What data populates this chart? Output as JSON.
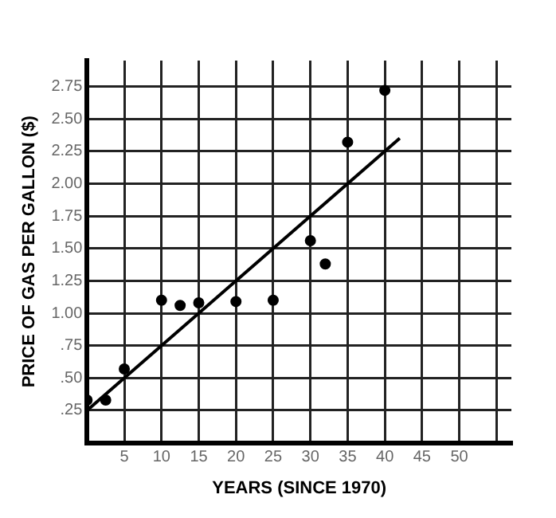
{
  "chart_data": {
    "type": "scatter",
    "xlabel": "YEARS (SINCE 1970)",
    "ylabel": "PRICE OF GAS PER GALLON ($)",
    "series": [
      {
        "color": "#000000",
        "marker": "circle",
        "x": [
          0,
          2.5,
          5,
          10,
          12.5,
          15,
          20,
          25,
          30,
          32,
          35,
          40
        ],
        "values": [
          0.33,
          0.33,
          0.57,
          1.1,
          1.06,
          1.08,
          1.09,
          1.1,
          1.56,
          1.38,
          2.32,
          2.72
        ]
      },
      {
        "type": "line",
        "color": "#000000",
        "marker": "none",
        "x": [
          0,
          42
        ],
        "values": [
          0.25,
          2.35
        ]
      }
    ],
    "xlim": [
      0,
      57
    ],
    "ylim": [
      0,
      2.95
    ],
    "xticks": [
      5,
      10,
      15,
      20,
      25,
      30,
      35,
      40,
      45,
      50,
      {
        "value": 55,
        "label": null
      }
    ],
    "yticks": [
      {
        "value": 0.25,
        "label": ".25"
      },
      {
        "value": 0.5,
        "label": ".50"
      },
      {
        "value": 0.75,
        "label": ".75"
      },
      {
        "value": 1,
        "label": "1.00"
      },
      {
        "value": 1.25,
        "label": "1.25"
      },
      {
        "value": 1.5,
        "label": "1.50"
      },
      {
        "value": 1.75,
        "label": "1.75"
      },
      {
        "value": 2,
        "label": "2.00"
      },
      {
        "value": 2.25,
        "label": "2.25"
      },
      {
        "value": 2.5,
        "label": "2.50"
      },
      {
        "value": 2.75,
        "label": "2.75"
      }
    ],
    "grid": true,
    "legend": false
  }
}
